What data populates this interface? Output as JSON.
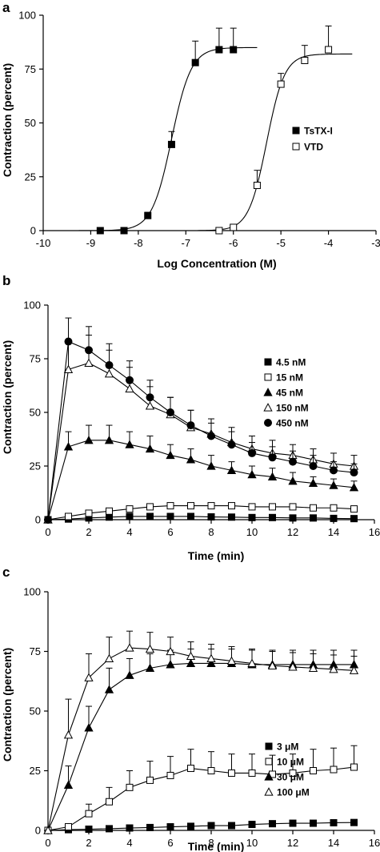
{
  "chart_data": [
    {
      "type": "scatter",
      "panel": "a",
      "xlabel": "Log Concentration (M)",
      "ylabel": "Contraction (percent)",
      "xlim": [
        -10,
        -3
      ],
      "ylim": [
        0,
        100
      ],
      "xticks": [
        -10,
        -9,
        -8,
        -7,
        -6,
        -5,
        -4,
        -3
      ],
      "yticks": [
        0,
        25,
        50,
        75,
        100
      ],
      "legend_position": "right",
      "fitted_curves": true,
      "series": [
        {
          "name": "TsTX-I",
          "marker": "square-filled",
          "x": [
            -8.8,
            -8.3,
            -7.8,
            -7.3,
            -6.8,
            -6.3,
            -6.0
          ],
          "y": [
            0,
            0,
            7,
            40,
            78,
            84,
            84
          ],
          "error": [
            0,
            0,
            1.5,
            6,
            10,
            10,
            10
          ],
          "fit": {
            "top": 85,
            "ec50": -7.3,
            "hill": 2.1
          }
        },
        {
          "name": "VTD",
          "marker": "square-open",
          "x": [
            -6.3,
            -6.0,
            -5.5,
            -5.0,
            -4.5,
            -4.0
          ],
          "y": [
            0,
            1.5,
            21,
            68,
            79,
            84
          ],
          "error": [
            0,
            1,
            7,
            5,
            7,
            11
          ],
          "fit": {
            "top": 82,
            "ec50": -5.3,
            "hill": 2.3
          }
        }
      ]
    },
    {
      "type": "line",
      "panel": "b",
      "xlabel": "Time (min)",
      "ylabel": "Contraction (percent)",
      "xlim": [
        0,
        16
      ],
      "ylim": [
        0,
        100
      ],
      "xticks": [
        0,
        2,
        4,
        6,
        8,
        10,
        12,
        14,
        16
      ],
      "yticks": [
        0,
        25,
        50,
        75,
        100
      ],
      "legend_position": "top-right",
      "x": [
        0,
        1,
        2,
        3,
        4,
        5,
        6,
        7,
        8,
        9,
        10,
        11,
        12,
        13,
        14,
        15
      ],
      "series": [
        {
          "name": "4.5 nM",
          "marker": "square-filled",
          "values": [
            0,
            0.3,
            0.8,
            1.2,
            1.5,
            1.5,
            1.5,
            1.5,
            1.3,
            1.2,
            1.0,
            1.0,
            0.8,
            0.8,
            0.6,
            0.5
          ],
          "error": [
            0,
            0.2,
            0.4,
            0.5,
            0.6,
            0.6,
            0.6,
            0.6,
            0.5,
            0.5,
            0.5,
            0.4,
            0.4,
            0.4,
            0.3,
            0.3
          ]
        },
        {
          "name": "15 nM",
          "marker": "square-open",
          "values": [
            0,
            1.5,
            3,
            4,
            5,
            6,
            6.5,
            6.5,
            6.5,
            6.5,
            6,
            6,
            6,
            5.5,
            5.5,
            5
          ],
          "error": [
            0,
            0.5,
            1,
            1,
            1,
            1.2,
            1.2,
            1.2,
            1.2,
            1.2,
            1.1,
            1,
            1,
            1,
            1,
            1
          ]
        },
        {
          "name": "45 nM",
          "marker": "triangle-filled",
          "values": [
            0,
            34,
            37,
            37,
            35,
            33,
            30,
            28,
            25,
            23,
            21,
            20,
            18,
            17,
            16,
            15
          ],
          "error": [
            0,
            7,
            7,
            7,
            6,
            6,
            5,
            5,
            5,
            4,
            4,
            4,
            4,
            3,
            3,
            3
          ]
        },
        {
          "name": "150 nM",
          "marker": "triangle-open",
          "values": [
            0,
            70,
            73,
            68,
            61,
            53,
            49,
            43,
            40,
            36,
            33,
            31,
            30,
            28,
            26,
            25
          ],
          "error": [
            0,
            13,
            13,
            11,
            10,
            9,
            8,
            8,
            7,
            7,
            6,
            6,
            5,
            5,
            5,
            5
          ]
        },
        {
          "name": "450 nM",
          "marker": "circle-filled",
          "values": [
            0,
            83,
            79,
            72,
            65,
            57,
            50,
            44,
            39,
            35,
            31,
            29,
            27,
            25,
            23,
            22
          ],
          "error": [
            0,
            11,
            11,
            10,
            9,
            8,
            7,
            7,
            6,
            6,
            5,
            5,
            5,
            5,
            4,
            4
          ]
        }
      ]
    },
    {
      "type": "line",
      "panel": "c",
      "xlabel": "Time (min)",
      "ylabel": "Contraction (percent)",
      "xlim": [
        0,
        16
      ],
      "ylim": [
        0,
        100
      ],
      "xticks": [
        0,
        2,
        4,
        6,
        8,
        10,
        12,
        14,
        16
      ],
      "yticks": [
        0,
        25,
        50,
        75,
        100
      ],
      "legend_position": "right",
      "x": [
        0,
        1,
        2,
        3,
        4,
        5,
        6,
        7,
        8,
        9,
        10,
        11,
        12,
        13,
        14,
        15
      ],
      "series": [
        {
          "name": "3 μM",
          "marker": "square-filled",
          "values": [
            0,
            0.3,
            0.5,
            0.7,
            1,
            1.2,
            1.5,
            1.7,
            2,
            2,
            2.5,
            2.8,
            3,
            3,
            3.2,
            3.3
          ],
          "error": [
            0,
            0.2,
            0.3,
            0.3,
            0.4,
            0.5,
            0.5,
            0.5,
            0.6,
            0.6,
            0.7,
            0.8,
            0.8,
            0.8,
            0.9,
            0.9
          ]
        },
        {
          "name": "10 μM",
          "marker": "square-open",
          "values": [
            0,
            1.5,
            7,
            12,
            18,
            21,
            23,
            26,
            25,
            24,
            24,
            23.5,
            24,
            25,
            25.5,
            26.5
          ],
          "error": [
            0,
            1,
            4,
            6,
            7,
            8,
            8,
            8,
            8,
            8,
            8,
            8,
            8,
            9,
            9,
            9
          ]
        },
        {
          "name": "30 μM",
          "marker": "triangle-filled",
          "values": [
            0,
            19,
            43,
            59,
            65,
            68,
            69.5,
            70,
            70,
            70,
            69.5,
            69.5,
            69.5,
            69.5,
            69.5,
            69.5
          ],
          "error": [
            0,
            8,
            9,
            9,
            7,
            6,
            6,
            6,
            6,
            6,
            6,
            6,
            6,
            6,
            6,
            6
          ]
        },
        {
          "name": "100 μM",
          "marker": "triangle-open",
          "values": [
            0,
            40,
            64,
            72,
            76.5,
            76,
            75,
            73,
            72,
            71,
            70,
            69,
            68.5,
            68,
            67.5,
            67
          ],
          "error": [
            0,
            15,
            10,
            9,
            7,
            7,
            6,
            6,
            6,
            6,
            6,
            6,
            6,
            6,
            6,
            6
          ]
        }
      ]
    }
  ]
}
